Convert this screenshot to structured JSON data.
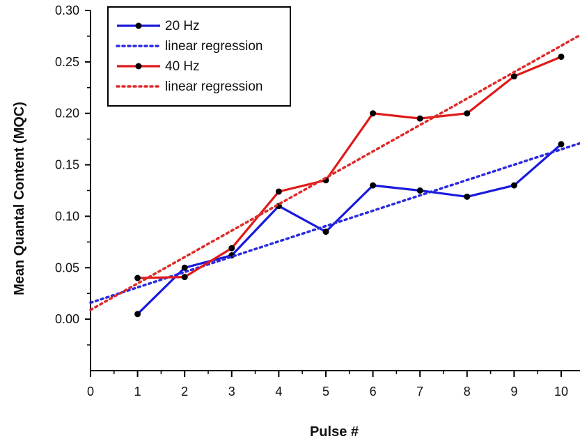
{
  "chart_data": {
    "type": "line",
    "xlabel": "Pulse #",
    "ylabel": "Mean Quantal Content (MQC)",
    "xlim": [
      0,
      10.4
    ],
    "ylim": [
      -0.05,
      0.3
    ],
    "x_ticks": [
      0,
      1,
      2,
      3,
      4,
      5,
      6,
      7,
      8,
      9,
      10
    ],
    "y_ticks": [
      0.0,
      0.05,
      0.1,
      0.15,
      0.2,
      0.25,
      0.3
    ],
    "y_tick_labels": [
      "0.00",
      "0.05",
      "0.10",
      "0.15",
      "0.20",
      "0.25",
      "0.30"
    ],
    "grid": false,
    "legend_position": "top-left",
    "series": [
      {
        "name": "20 Hz",
        "color": "#1a1adc",
        "style": "line-markers",
        "x": [
          1,
          2,
          3,
          4,
          5,
          6,
          7,
          8,
          9,
          10
        ],
        "values": [
          0.005,
          0.05,
          0.062,
          0.11,
          0.085,
          0.13,
          0.125,
          0.119,
          0.13,
          0.17
        ]
      },
      {
        "name": "linear regression",
        "color": "#2a2ae0",
        "style": "dotted",
        "x": [
          0,
          10.4
        ],
        "values": [
          0.016,
          0.171
        ]
      },
      {
        "name": "40 Hz",
        "color": "#e01919",
        "style": "line-markers",
        "x": [
          1,
          2,
          3,
          4,
          5,
          6,
          7,
          8,
          9,
          10
        ],
        "values": [
          0.04,
          0.041,
          0.069,
          0.124,
          0.135,
          0.2,
          0.195,
          0.2,
          0.236,
          0.255
        ]
      },
      {
        "name": "linear regression",
        "color": "#e02a2a",
        "style": "dotted",
        "x": [
          0,
          10.4
        ],
        "values": [
          0.009,
          0.276
        ]
      }
    ]
  }
}
